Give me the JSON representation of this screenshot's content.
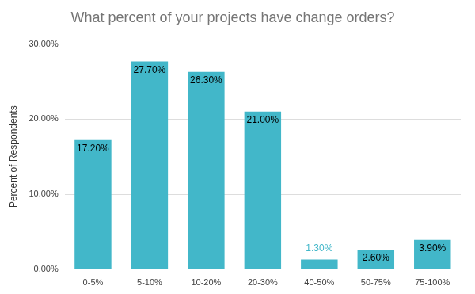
{
  "chart_data": {
    "type": "bar",
    "title": "What percent of your projects have change orders?",
    "y_label": "Percent of Respondents",
    "categories": [
      "0-5%",
      "5-10%",
      "10-20%",
      "20-30%",
      "40-50%",
      "50-75%",
      "75-100%"
    ],
    "values": [
      17.2,
      27.7,
      26.3,
      21.0,
      1.3,
      2.6,
      3.9
    ],
    "value_labels": [
      "17.20%",
      "27.70%",
      "26.30%",
      "21.00%",
      "1.30%",
      "2.60%",
      "3.90%"
    ],
    "color": "#42b7c9",
    "ylim": [
      0,
      30
    ],
    "yticks": [
      {
        "value": 0,
        "label": "0.00%"
      },
      {
        "value": 10,
        "label": "10.00%"
      },
      {
        "value": 20,
        "label": "20.00%"
      },
      {
        "value": 30,
        "label": "30.00%"
      }
    ],
    "grid": true,
    "data_labels": true
  }
}
